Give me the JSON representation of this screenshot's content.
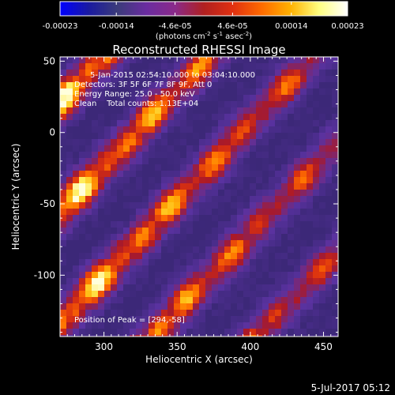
{
  "colorbar": {
    "tick_labels": [
      "-0.00023",
      "-0.00014",
      "-4.6e-05",
      "4.6e-05",
      "0.00014",
      "0.00023"
    ],
    "tick_values": [
      -0.00023,
      -0.00014,
      -4.6e-05,
      4.6e-05,
      0.00014,
      0.00023
    ],
    "unit_label": "(photons cm",
    "unit_exp1": "-2",
    "unit_mid": " s",
    "unit_exp2": "-1",
    "unit_end": " asec",
    "unit_exp3": "-2",
    "unit_close": ")",
    "range": [
      -0.00023,
      0.00023
    ],
    "colors": [
      "#0000ff",
      "#1a1aa0",
      "#3b3b7a",
      "#6a2ca0",
      "#8a2a8a",
      "#b02020",
      "#e03010",
      "#ff6a00",
      "#ffb000",
      "#ffff80",
      "#ffffff"
    ]
  },
  "chart_data": {
    "type": "heatmap",
    "title": "Reconstructed RHESSI Image",
    "xlabel": "Heliocentric X (arcsec)",
    "ylabel": "Heliocentric Y (arcsec)",
    "xlim": [
      270,
      460
    ],
    "ylim": [
      -143,
      53
    ],
    "x_ticks": [
      300,
      350,
      400,
      450
    ],
    "x_tick_labels": [
      "300",
      "350",
      "400",
      "450"
    ],
    "y_ticks": [
      50,
      0,
      -50,
      -100
    ],
    "y_tick_labels": [
      "50",
      "0",
      "-50",
      "-100"
    ],
    "annotations": [
      "5-Jan-2015 02:54:10.000 to 03:04:10.000",
      "Detectors: 3F 5F 6F 7F 8F 9F, Att 0",
      "Energy Range: 25.0 - 50.0 keV",
      "Clean    Total counts: 1.13E+04"
    ],
    "peak_label": "Position of Peak = [294,-58]",
    "peak": [
      294,
      -58
    ]
  },
  "footer": {
    "date": "5-Jul-2017 05:12"
  }
}
